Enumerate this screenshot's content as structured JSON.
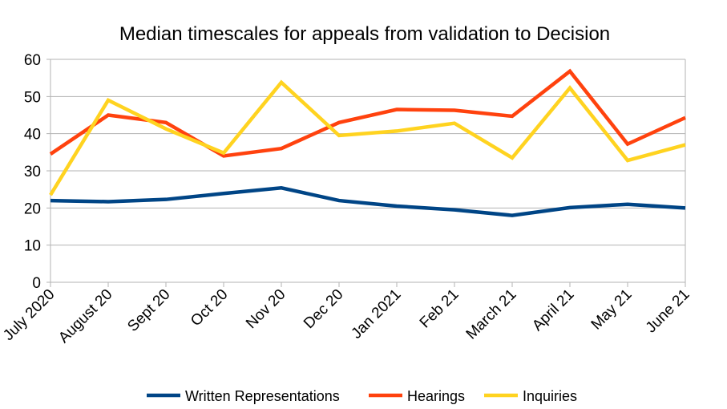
{
  "chart_data": {
    "type": "line",
    "title": "Median timescales for appeals from validation to Decision",
    "xlabel": "",
    "ylabel": "",
    "ylim": [
      0,
      60
    ],
    "yticks": [
      0,
      10,
      20,
      30,
      40,
      50,
      60
    ],
    "grid": true,
    "legend_position": "bottom",
    "categories": [
      "July 2020",
      "August 20",
      "Sept 20",
      "Oct 20",
      "Nov 20",
      "Dec 20",
      "Jan 2021",
      "Feb 21",
      "March 21",
      "April 21",
      "May 21",
      "June 21"
    ],
    "series": [
      {
        "name": "Written Representations",
        "color": "#004586",
        "values": [
          22,
          21.7,
          22.3,
          23.9,
          25.4,
          22,
          20.5,
          19.5,
          18,
          20.1,
          21,
          20
        ]
      },
      {
        "name": "Hearings",
        "color": "#ff420e",
        "values": [
          34.5,
          45,
          43,
          34,
          36,
          43,
          46.5,
          46.3,
          44.7,
          56.8,
          37.2,
          44.3
        ]
      },
      {
        "name": "Inquiries",
        "color": "#ffd320",
        "values": [
          23.5,
          49,
          41.3,
          34.8,
          53.8,
          39.5,
          40.7,
          42.8,
          33.5,
          52.3,
          32.8,
          37
        ]
      }
    ]
  }
}
